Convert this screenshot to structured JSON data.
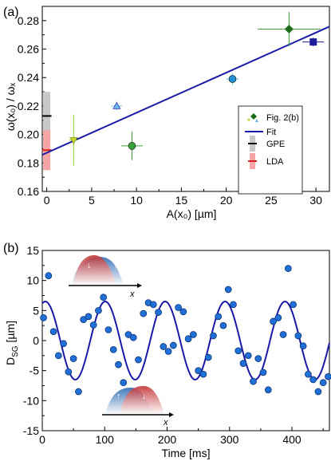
{
  "panel_a": {
    "label": "(a)",
    "xlabel": "A(x₀) [µm]",
    "ylabel": "ω(x₀) / ωₓ",
    "xticks": [
      "0",
      "5",
      "10",
      "15",
      "20",
      "25",
      "30"
    ],
    "yticks": [
      "0.16",
      "0.18",
      "0.20",
      "0.22",
      "0.24",
      "0.26",
      "0.28"
    ],
    "legend": {
      "fig2b": "Fig. 2(b)",
      "fit": "Fit",
      "gpe": "GPE",
      "lda": "LDA"
    }
  },
  "panel_b": {
    "label": "(b)",
    "xlabel": "Time [ms]",
    "ylabel": "D_SG [µm]",
    "xticks": [
      "0",
      "100",
      "200",
      "300",
      "400"
    ],
    "yticks": [
      "-15",
      "-10",
      "-5",
      "0",
      "5",
      "10",
      "15"
    ],
    "inset_axis": "x"
  },
  "colors": {
    "fit": "#1a1aa8",
    "point_blue": "#1f6fd6",
    "point_green": "#3aa13a",
    "dark_green": "#1a6b1a",
    "yellow_green": "#c8d62a",
    "light_blue": "#6ab8ec",
    "navy": "#1c1c9a",
    "gpe": "#b0b0b0",
    "lda": "#f08080",
    "red": "#d42020"
  },
  "chart_data": [
    {
      "type": "scatter",
      "title": "",
      "xlabel": "A(x₀) [µm]",
      "ylabel": "ω(x₀) / ωₓ",
      "xlim": [
        -0.5,
        31.5
      ],
      "ylim": [
        0.16,
        0.29
      ],
      "grid": false,
      "legend": "right",
      "series": [
        {
          "name": "Fig. 2(b)",
          "points": [
            {
              "x": 3.0,
              "y": 0.196,
              "xerr": 0.5,
              "yerr": 0.018,
              "marker": "triangle-down",
              "color": "#c8d62a",
              "ecolor": "#9acd32"
            },
            {
              "x": 7.8,
              "y": 0.22,
              "xerr": 0.6,
              "yerr": 0.003,
              "marker": "triangle-up",
              "color": "#6ab8ec",
              "ecolor": "#6ab8ec"
            },
            {
              "x": 9.5,
              "y": 0.192,
              "xerr": 1.2,
              "yerr": 0.01,
              "marker": "circle",
              "color": "#3aa13a",
              "ecolor": "#3aa13a"
            },
            {
              "x": 20.7,
              "y": 0.239,
              "xerr": 0.7,
              "yerr": 0.004,
              "marker": "circle",
              "color": "#1f8fd6",
              "ecolor": "#6ab8ec"
            },
            {
              "x": 27.0,
              "y": 0.274,
              "xerr": 3.5,
              "yerr": 0.012,
              "marker": "diamond",
              "color": "#1a6b1a",
              "ecolor": "#3aa13a"
            },
            {
              "x": 29.7,
              "y": 0.265,
              "xerr": 1.2,
              "yerr": 0.003,
              "marker": "square",
              "color": "#1c1c9a",
              "ecolor": "#1c1c9a"
            }
          ]
        },
        {
          "name": "Fit",
          "type": "line",
          "x": [
            -0.5,
            31.5
          ],
          "y": [
            0.1857,
            0.2758
          ]
        },
        {
          "name": "GPE",
          "x": 0.0,
          "y": 0.213,
          "band": [
            0.195,
            0.23
          ]
        },
        {
          "name": "LDA",
          "x": 0.0,
          "y": 0.189,
          "band": [
            0.175,
            0.203
          ]
        }
      ]
    },
    {
      "type": "scatter",
      "title": "",
      "xlabel": "Time [ms]",
      "ylabel": "D_SG [µm]",
      "xlim": [
        0,
        460
      ],
      "ylim": [
        -15,
        15
      ],
      "grid": false,
      "series": [
        {
          "name": "",
          "x": [
            2,
            10,
            18,
            26,
            34,
            42,
            50,
            58,
            66,
            74,
            82,
            90,
            98,
            106,
            114,
            122,
            130,
            138,
            146,
            154,
            162,
            170,
            178,
            186,
            194,
            202,
            210,
            218,
            226,
            234,
            242,
            250,
            258,
            266,
            274,
            282,
            290,
            298,
            306,
            314,
            322,
            330,
            338,
            346,
            354,
            362,
            370,
            378,
            386,
            394,
            402,
            410,
            418,
            426,
            434,
            442,
            450,
            458
          ],
          "y": [
            3.8,
            10.8,
            1.5,
            -2.5,
            -0.5,
            -5.2,
            -3.0,
            -8.5,
            3.5,
            4.0,
            2.6,
            5.0,
            7.2,
            1.8,
            -1.5,
            -4.0,
            -7.0,
            1.0,
            0.5,
            -3.2,
            4.5,
            6.3,
            6.0,
            4.7,
            -1.0,
            -1.8,
            -0.8,
            5.5,
            4.8,
            0.3,
            1.0,
            -5.0,
            -5.6,
            -2.8,
            0.8,
            4.0,
            2.5,
            8.5,
            6.0,
            -1.7,
            -3.8,
            -2.5,
            -6.8,
            -3.0,
            -5.3,
            -8.2,
            3.2,
            3.8,
            1.0,
            12.0,
            6.0,
            0.8,
            -0.9,
            -5.6,
            -6.5,
            -8.5,
            -7.0,
            -6.0
          ]
        },
        {
          "name": "",
          "type": "line",
          "function": "6.5*sin(2*pi*t/96 + 1.25)"
        }
      ]
    }
  ]
}
